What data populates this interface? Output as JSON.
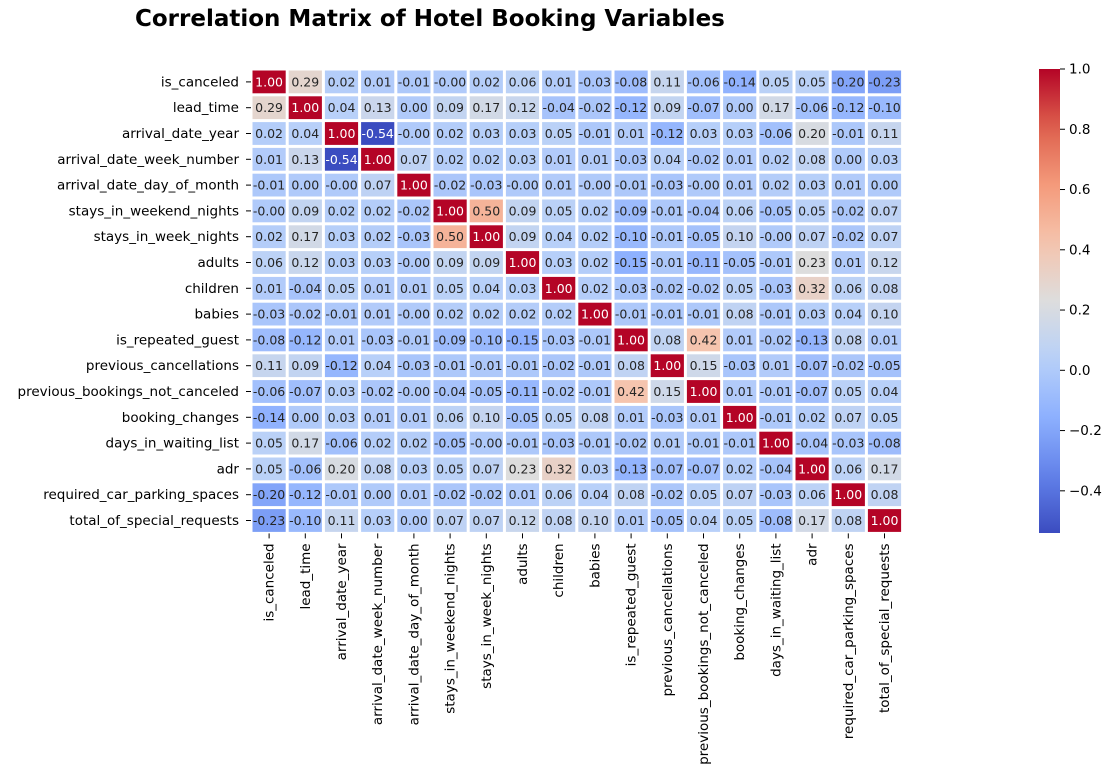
{
  "chart_data": {
    "type": "heatmap",
    "title": "Correlation Matrix of Hotel Booking Variables",
    "xlabel": "",
    "ylabel": "",
    "variables": [
      "is_canceled",
      "lead_time",
      "arrival_date_year",
      "arrival_date_week_number",
      "arrival_date_day_of_month",
      "stays_in_weekend_nights",
      "stays_in_week_nights",
      "adults",
      "children",
      "babies",
      "is_repeated_guest",
      "previous_cancellations",
      "previous_bookings_not_canceled",
      "booking_changes",
      "days_in_waiting_list",
      "adr",
      "required_car_parking_spaces",
      "total_of_special_requests"
    ],
    "values": [
      [
        1.0,
        0.29,
        0.02,
        0.01,
        -0.01,
        -0.0,
        0.02,
        0.06,
        0.01,
        -0.03,
        -0.08,
        0.11,
        -0.06,
        -0.14,
        0.05,
        0.05,
        -0.2,
        -0.23
      ],
      [
        0.29,
        1.0,
        0.04,
        0.13,
        0.0,
        0.09,
        0.17,
        0.12,
        -0.04,
        -0.02,
        -0.12,
        0.09,
        -0.07,
        0.0,
        0.17,
        -0.06,
        -0.12,
        -0.1
      ],
      [
        0.02,
        0.04,
        1.0,
        -0.54,
        -0.0,
        0.02,
        0.03,
        0.03,
        0.05,
        -0.01,
        0.01,
        -0.12,
        0.03,
        0.03,
        -0.06,
        0.2,
        -0.01,
        0.11
      ],
      [
        0.01,
        0.13,
        -0.54,
        1.0,
        0.07,
        0.02,
        0.02,
        0.03,
        0.01,
        0.01,
        -0.03,
        0.04,
        -0.02,
        0.01,
        0.02,
        0.08,
        0.0,
        0.03
      ],
      [
        -0.01,
        0.0,
        -0.0,
        0.07,
        1.0,
        -0.02,
        -0.03,
        -0.0,
        0.01,
        -0.0,
        -0.01,
        -0.03,
        -0.0,
        0.01,
        0.02,
        0.03,
        0.01,
        0.0
      ],
      [
        -0.0,
        0.09,
        0.02,
        0.02,
        -0.02,
        1.0,
        0.5,
        0.09,
        0.05,
        0.02,
        -0.09,
        -0.01,
        -0.04,
        0.06,
        -0.05,
        0.05,
        -0.02,
        0.07
      ],
      [
        0.02,
        0.17,
        0.03,
        0.02,
        -0.03,
        0.5,
        1.0,
        0.09,
        0.04,
        0.02,
        -0.1,
        -0.01,
        -0.05,
        0.1,
        -0.0,
        0.07,
        -0.02,
        0.07
      ],
      [
        0.06,
        0.12,
        0.03,
        0.03,
        -0.0,
        0.09,
        0.09,
        1.0,
        0.03,
        0.02,
        -0.15,
        -0.01,
        -0.11,
        -0.05,
        -0.01,
        0.23,
        0.01,
        0.12
      ],
      [
        0.01,
        -0.04,
        0.05,
        0.01,
        0.01,
        0.05,
        0.04,
        0.03,
        1.0,
        0.02,
        -0.03,
        -0.02,
        -0.02,
        0.05,
        -0.03,
        0.32,
        0.06,
        0.08
      ],
      [
        -0.03,
        -0.02,
        -0.01,
        0.01,
        -0.0,
        0.02,
        0.02,
        0.02,
        0.02,
        1.0,
        -0.01,
        -0.01,
        -0.01,
        0.08,
        -0.01,
        0.03,
        0.04,
        0.1
      ],
      [
        -0.08,
        -0.12,
        0.01,
        -0.03,
        -0.01,
        -0.09,
        -0.1,
        -0.15,
        -0.03,
        -0.01,
        1.0,
        0.08,
        0.42,
        0.01,
        -0.02,
        -0.13,
        0.08,
        0.01
      ],
      [
        0.11,
        0.09,
        -0.12,
        0.04,
        -0.03,
        -0.01,
        -0.01,
        -0.01,
        -0.02,
        -0.01,
        0.08,
        1.0,
        0.15,
        -0.03,
        0.01,
        -0.07,
        -0.02,
        -0.05
      ],
      [
        -0.06,
        -0.07,
        0.03,
        -0.02,
        -0.0,
        -0.04,
        -0.05,
        -0.11,
        -0.02,
        -0.01,
        0.42,
        0.15,
        1.0,
        0.01,
        -0.01,
        -0.07,
        0.05,
        0.04
      ],
      [
        -0.14,
        0.0,
        0.03,
        0.01,
        0.01,
        0.06,
        0.1,
        -0.05,
        0.05,
        0.08,
        0.01,
        -0.03,
        0.01,
        1.0,
        -0.01,
        0.02,
        0.07,
        0.05
      ],
      [
        0.05,
        0.17,
        -0.06,
        0.02,
        0.02,
        -0.05,
        -0.0,
        -0.01,
        -0.03,
        -0.01,
        -0.02,
        0.01,
        -0.01,
        -0.01,
        1.0,
        -0.04,
        -0.03,
        -0.08
      ],
      [
        0.05,
        -0.06,
        0.2,
        0.08,
        0.03,
        0.05,
        0.07,
        0.23,
        0.32,
        0.03,
        -0.13,
        -0.07,
        -0.07,
        0.02,
        -0.04,
        1.0,
        0.06,
        0.17
      ],
      [
        -0.2,
        -0.12,
        -0.01,
        0.0,
        0.01,
        -0.02,
        -0.02,
        0.01,
        0.06,
        0.04,
        0.08,
        -0.02,
        0.05,
        0.07,
        -0.03,
        0.06,
        1.0,
        0.08
      ],
      [
        -0.23,
        -0.1,
        0.11,
        0.03,
        0.0,
        0.07,
        0.07,
        0.12,
        0.08,
        0.1,
        0.01,
        -0.05,
        0.04,
        0.05,
        -0.08,
        0.17,
        0.08,
        1.0
      ]
    ],
    "colormap": "coolwarm",
    "vmin": -0.54,
    "vmax": 1.0,
    "annotation_format": "2 decimals",
    "colorbar_ticks": [
      1.0,
      0.8,
      0.6,
      0.4,
      0.2,
      0.0,
      -0.2,
      -0.4
    ],
    "colorbar_tick_labels": [
      "1.0",
      "0.8",
      "0.6",
      "0.4",
      "0.2",
      "0.0",
      "−0.2",
      "−0.4"
    ],
    "grid": false,
    "legend": "colorbar-right",
    "cell_gap_color": "#ffffff"
  }
}
